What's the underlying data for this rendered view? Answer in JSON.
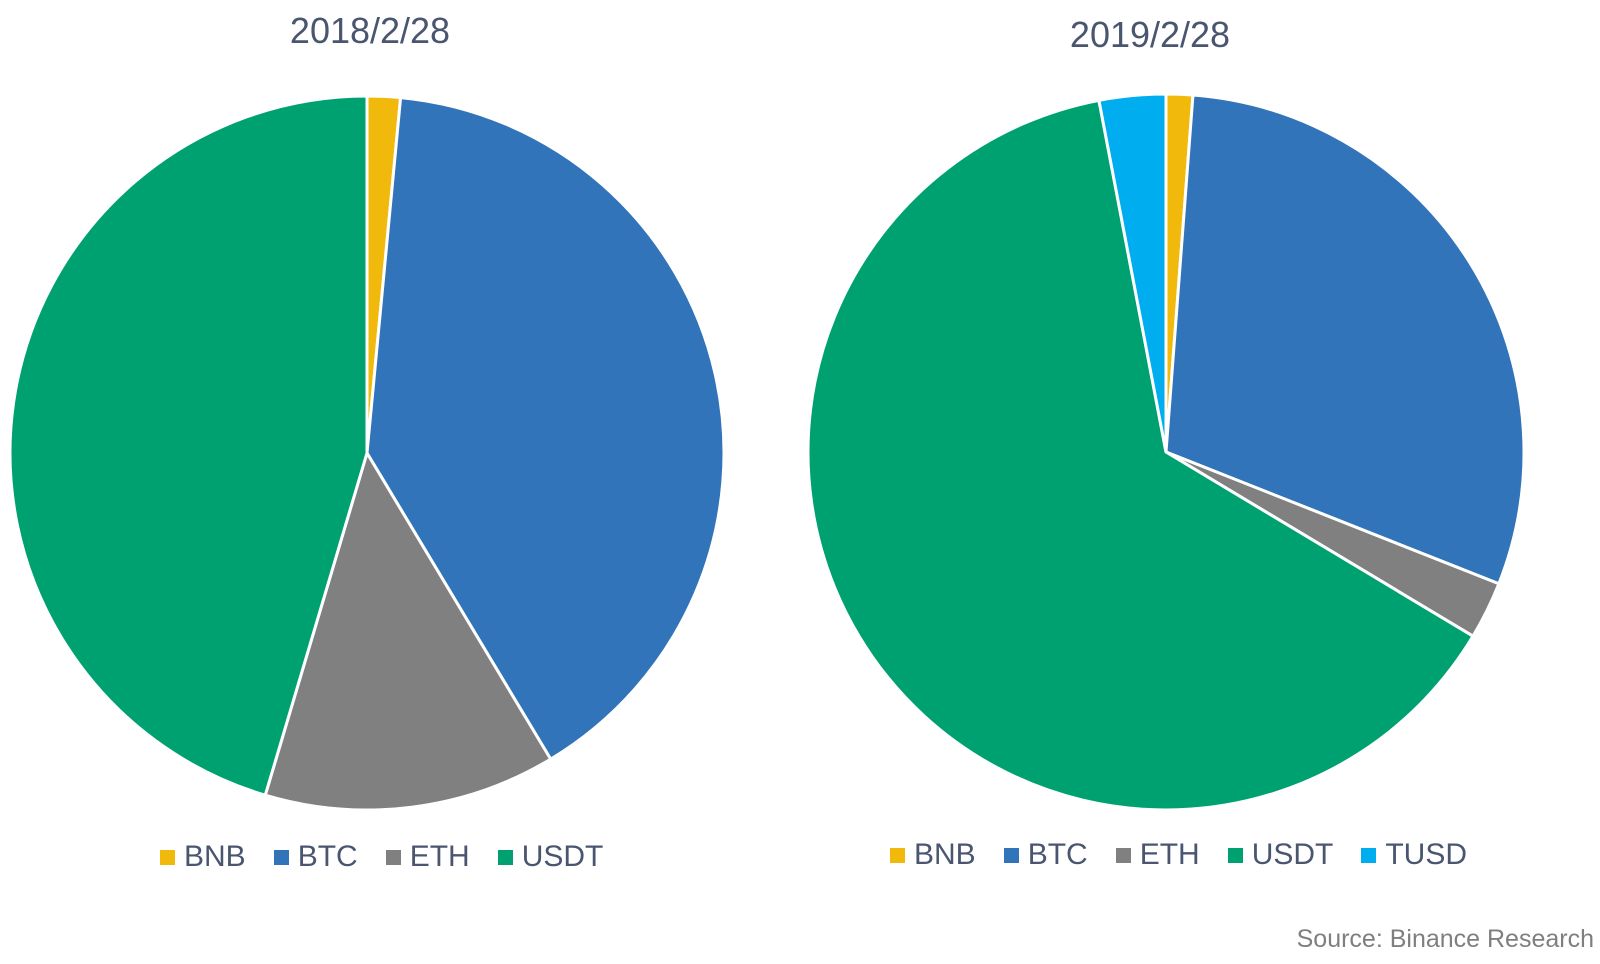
{
  "colors": {
    "BNB": "#f0b90b",
    "BTC": "#3174b9",
    "ETH": "#808080",
    "USDT": "#00a170",
    "TUSD": "#00aeef"
  },
  "chart_data": [
    {
      "type": "pie",
      "title": "2018/2/28",
      "categories": [
        "BNB",
        "BTC",
        "ETH",
        "USDT"
      ],
      "values": [
        1.5,
        39.9,
        13.2,
        45.4
      ],
      "unit": "% share (estimated from slice angles)",
      "legend_position": "bottom"
    },
    {
      "type": "pie",
      "title": "2019/2/28",
      "categories": [
        "BNB",
        "BTC",
        "ETH",
        "USDT",
        "TUSD"
      ],
      "values": [
        1.2,
        29.8,
        2.6,
        63.4,
        3.0
      ],
      "unit": "% share (estimated from slice angles)",
      "legend_position": "bottom"
    }
  ],
  "source": "Source: Binance Research"
}
